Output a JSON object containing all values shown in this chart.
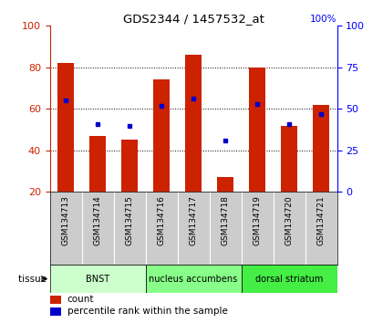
{
  "title": "GDS2344 / 1457532_at",
  "categories": [
    "GSM134713",
    "GSM134714",
    "GSM134715",
    "GSM134716",
    "GSM134717",
    "GSM134718",
    "GSM134719",
    "GSM134720",
    "GSM134721"
  ],
  "count_values": [
    82,
    47,
    45,
    74,
    86,
    27,
    80,
    52,
    62
  ],
  "percentile_values": [
    55,
    41,
    40,
    52,
    56,
    31,
    53,
    41,
    47
  ],
  "ymin": 20,
  "ymax": 100,
  "yticks_left": [
    20,
    40,
    60,
    80,
    100
  ],
  "yticks_right": [
    0,
    25,
    50,
    75,
    100
  ],
  "bar_color": "#cc2200",
  "percentile_color": "#0000cc",
  "background_color": "#ffffff",
  "tissue_groups": [
    {
      "label": "BNST",
      "start": 0,
      "end": 3,
      "color": "#ccffcc"
    },
    {
      "label": "nucleus accumbens",
      "start": 3,
      "end": 6,
      "color": "#88ff88"
    },
    {
      "label": "dorsal striatum",
      "start": 6,
      "end": 9,
      "color": "#44ee44"
    }
  ],
  "legend_count_label": "count",
  "legend_pct_label": "percentile rank within the sample",
  "tissue_label": "tissue",
  "bar_width": 0.5,
  "xaxis_bg": "#cccccc",
  "grid_lines": [
    40,
    60,
    80
  ],
  "right_yaxis_label": "100%"
}
